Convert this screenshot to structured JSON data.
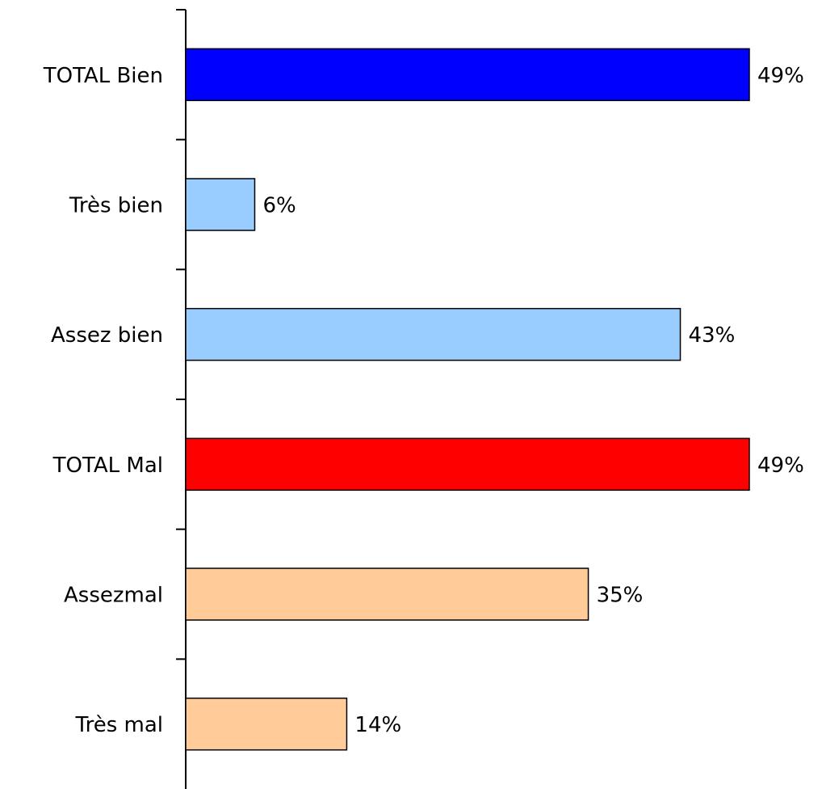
{
  "chart_data": {
    "type": "barh",
    "categories": [
      "TOTAL Bien",
      "Très bien",
      "Assez bien",
      "TOTAL Mal",
      "Assezmal",
      "Très mal"
    ],
    "values": [
      49,
      6,
      43,
      49,
      35,
      14
    ],
    "value_labels": [
      "49%",
      "6%",
      "43%",
      "49%",
      "35%",
      "14%"
    ],
    "colors": [
      "#0000ff",
      "#99ccff",
      "#99ccff",
      "#ff0000",
      "#ffcc99",
      "#ffcc99"
    ]
  }
}
